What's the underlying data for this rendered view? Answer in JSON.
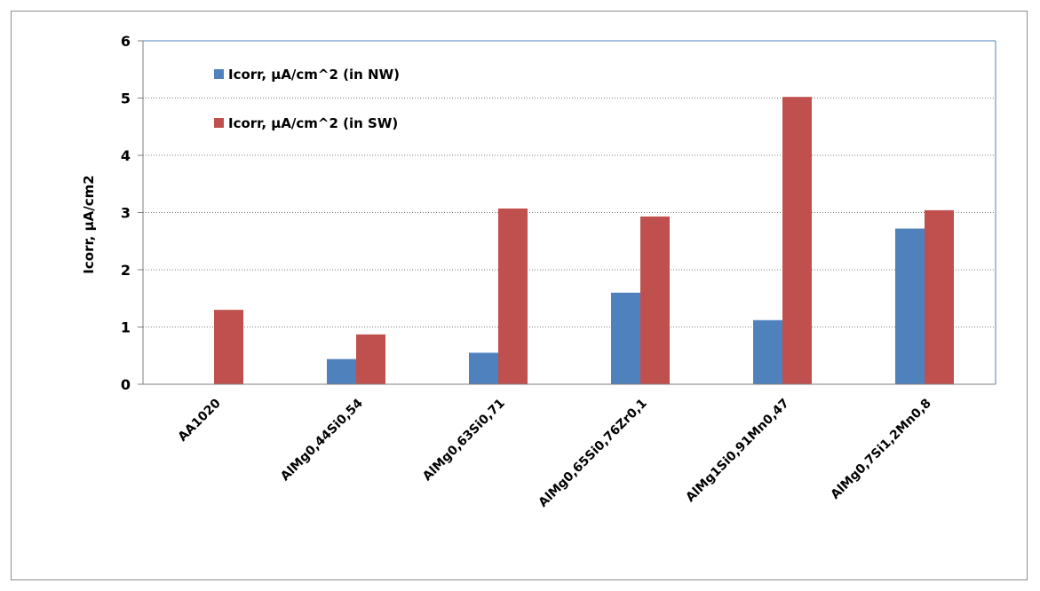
{
  "chart_data": {
    "type": "bar",
    "title": "",
    "xlabel": "",
    "ylabel": "Icorr, µA/cm2",
    "ylim": [
      0,
      6
    ],
    "yticks": [
      0,
      1,
      2,
      3,
      4,
      5,
      6
    ],
    "grid": true,
    "legend_position": "top-left",
    "categories": [
      "AA1020",
      "AlMg0,44Si0,54",
      "AlMg0,63Si0,71",
      "AlMg0,65Si0,76Zr0,1",
      "AlMg1Si0,91Mn0,47",
      "AlMg0,7Si1,2Mn0,8"
    ],
    "series": [
      {
        "name": "Icorr, µA/cm^2 (in NW)",
        "color": "#4F81BD",
        "values": [
          0,
          0.44,
          0.55,
          1.6,
          1.12,
          2.72
        ]
      },
      {
        "name": "Icorr, µA/cm^2 (in SW)",
        "color": "#C0504D",
        "values": [
          1.3,
          0.87,
          3.07,
          2.93,
          5.02,
          3.04
        ]
      }
    ]
  }
}
